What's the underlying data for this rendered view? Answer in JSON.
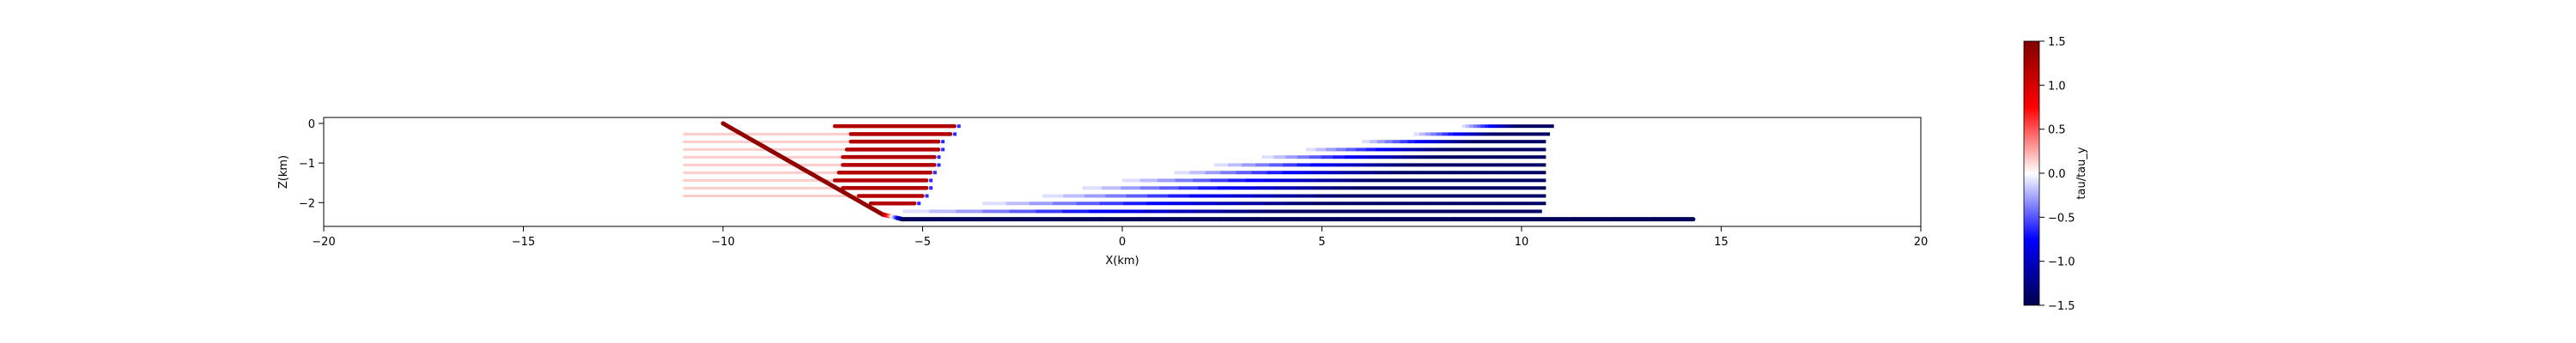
{
  "chart_data": {
    "type": "scatter",
    "title": "",
    "xlabel": "X(km)",
    "ylabel": "Z(km)",
    "xlim": [
      -20,
      20
    ],
    "ylim": [
      -2.6,
      0.15
    ],
    "xticks": [
      -20,
      -15,
      -10,
      -5,
      0,
      5,
      10,
      15,
      20
    ],
    "yticks": [
      0,
      -1,
      -2
    ],
    "grid": false,
    "legend": "none",
    "colorbar": {
      "label": "tau/tau_y",
      "range": [
        -1.5,
        1.5
      ],
      "ticks": [
        1.5,
        1.0,
        0.5,
        0.0,
        -0.5,
        -1.0,
        -1.5
      ],
      "colormap": "seismic",
      "colors": [
        "#00004c",
        "#0000ff",
        "#ffffff",
        "#ff0000",
        "#800000"
      ]
    },
    "fault": {
      "points": [
        [
          -10.0,
          0.0
        ],
        [
          -6.0,
          -2.3
        ],
        [
          -5.5,
          -2.42
        ],
        [
          14.3,
          -2.42
        ]
      ],
      "value_start": 1.4,
      "value_end": -1.45
    },
    "red_layers": [
      {
        "z": -0.07,
        "x0": -7.2,
        "x1": -4.2,
        "value": 1.2
      },
      {
        "z": -0.27,
        "x0": -6.8,
        "x1": -4.3,
        "value": 1.2
      },
      {
        "z": -0.46,
        "x0": -6.8,
        "x1": -4.6,
        "value": 1.2
      },
      {
        "z": -0.66,
        "x0": -6.9,
        "x1": -4.6,
        "value": 1.2
      },
      {
        "z": -0.85,
        "x0": -7.0,
        "x1": -4.7,
        "value": 1.2
      },
      {
        "z": -1.05,
        "x0": -7.0,
        "x1": -4.7,
        "value": 1.2
      },
      {
        "z": -1.24,
        "x0": -7.1,
        "x1": -4.8,
        "value": 1.2
      },
      {
        "z": -1.44,
        "x0": -7.2,
        "x1": -4.9,
        "value": 1.2
      },
      {
        "z": -1.63,
        "x0": -7.0,
        "x1": -4.9,
        "value": 1.2
      },
      {
        "z": -1.83,
        "x0": -6.6,
        "x1": -5.0,
        "value": 1.2
      },
      {
        "z": -2.02,
        "x0": -6.3,
        "x1": -5.2,
        "value": 1.2
      }
    ],
    "blue_layers": [
      {
        "z": -0.07,
        "x0": 8.5,
        "x1": 10.8
      },
      {
        "z": -0.27,
        "x0": 7.3,
        "x1": 10.7
      },
      {
        "z": -0.46,
        "x0": 6.0,
        "x1": 10.6
      },
      {
        "z": -0.66,
        "x0": 4.6,
        "x1": 10.6
      },
      {
        "z": -0.85,
        "x0": 3.5,
        "x1": 10.6
      },
      {
        "z": -1.05,
        "x0": 2.3,
        "x1": 10.6
      },
      {
        "z": -1.24,
        "x0": 1.3,
        "x1": 10.6
      },
      {
        "z": -1.44,
        "x0": 0.0,
        "x1": 10.6
      },
      {
        "z": -1.63,
        "x0": -1.0,
        "x1": 10.6
      },
      {
        "z": -1.83,
        "x0": -2.0,
        "x1": 10.6
      },
      {
        "z": -2.02,
        "x0": -3.5,
        "x1": 10.6
      },
      {
        "z": -2.22,
        "x0": -5.5,
        "x1": 10.5
      }
    ],
    "faint_band": {
      "x0": -11.0,
      "x1": -5.8,
      "z_top": -0.27,
      "z_bottom": -2.02,
      "value": 0.15
    }
  }
}
